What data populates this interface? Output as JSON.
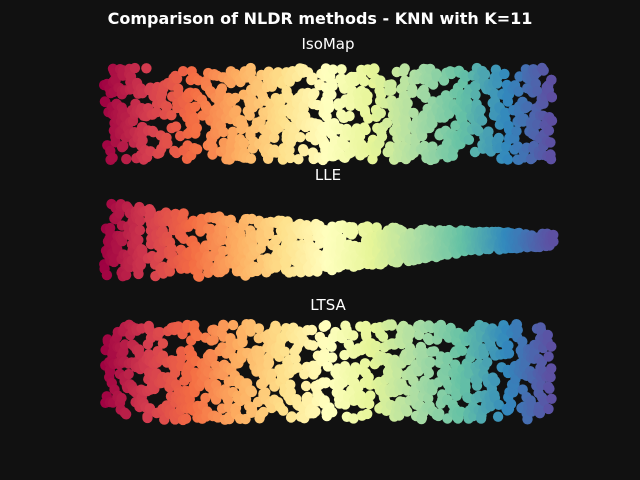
{
  "figure": {
    "title": "Comparison of NLDR methods - KNN with K=11",
    "background": "#111111"
  },
  "colormap": {
    "name": "Spectral",
    "stops": [
      "#9e0142",
      "#d53e4f",
      "#f46d43",
      "#fdae61",
      "#fee08b",
      "#ffffbf",
      "#e6f598",
      "#abdda4",
      "#66c2a5",
      "#3288bd",
      "#5e4fa2"
    ]
  },
  "chart_data": [
    {
      "type": "scatter",
      "title": "IsoMap",
      "shape": "band",
      "color_by": "x",
      "axes": "off",
      "n_points": 1000,
      "point_size": 8,
      "xlim": [
        0,
        1
      ],
      "ylim": [
        0,
        1
      ],
      "point_seed": 11
    },
    {
      "type": "scatter",
      "title": "LLE",
      "shape": "curved-wedge",
      "color_by": "x",
      "axes": "off",
      "n_points": 1000,
      "point_size": 8,
      "xlim": [
        0,
        1
      ],
      "ylim": [
        0,
        1
      ],
      "point_seed": 23
    },
    {
      "type": "scatter",
      "title": "LTSA",
      "shape": "band",
      "color_by": "x",
      "axes": "off",
      "n_points": 1000,
      "point_size": 8,
      "xlim": [
        0,
        1
      ],
      "ylim": [
        0,
        1
      ],
      "point_seed": 37
    }
  ]
}
